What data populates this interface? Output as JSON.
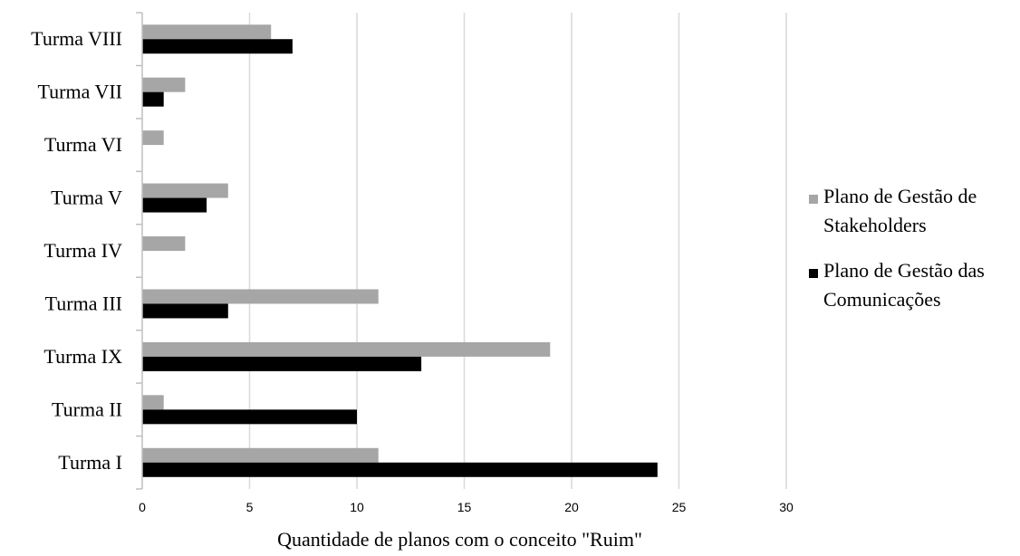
{
  "chart_data": {
    "type": "bar",
    "orientation": "horizontal",
    "categories": [
      "Turma I",
      "Turma II",
      "Turma IX",
      "Turma III",
      "Turma IV",
      "Turma V",
      "Turma VI",
      "Turma VII",
      "Turma VIII"
    ],
    "series": [
      {
        "name": "Plano de Gestão de Stakeholders",
        "name_lines": [
          "Plano de Gestão de",
          "Stakeholders"
        ],
        "color": "#a6a6a6",
        "values": [
          11,
          1,
          19,
          11,
          2,
          4,
          1,
          2,
          6
        ]
      },
      {
        "name": "Plano de Gestão das Comunicações",
        "name_lines": [
          "Plano de Gestão das",
          "Comunicações"
        ],
        "color": "#000000",
        "values": [
          24,
          10,
          13,
          4,
          0,
          3,
          0,
          1,
          7
        ]
      }
    ],
    "xlabel": "Quantidade de planos com o conceito \"Ruim\"",
    "ylabel": "",
    "xlim": [
      0,
      30
    ],
    "xticks": [
      0,
      5,
      10,
      15,
      20,
      25,
      30
    ],
    "grid": "vertical",
    "gridColor": "#d9d9d9",
    "legend_position": "right"
  }
}
